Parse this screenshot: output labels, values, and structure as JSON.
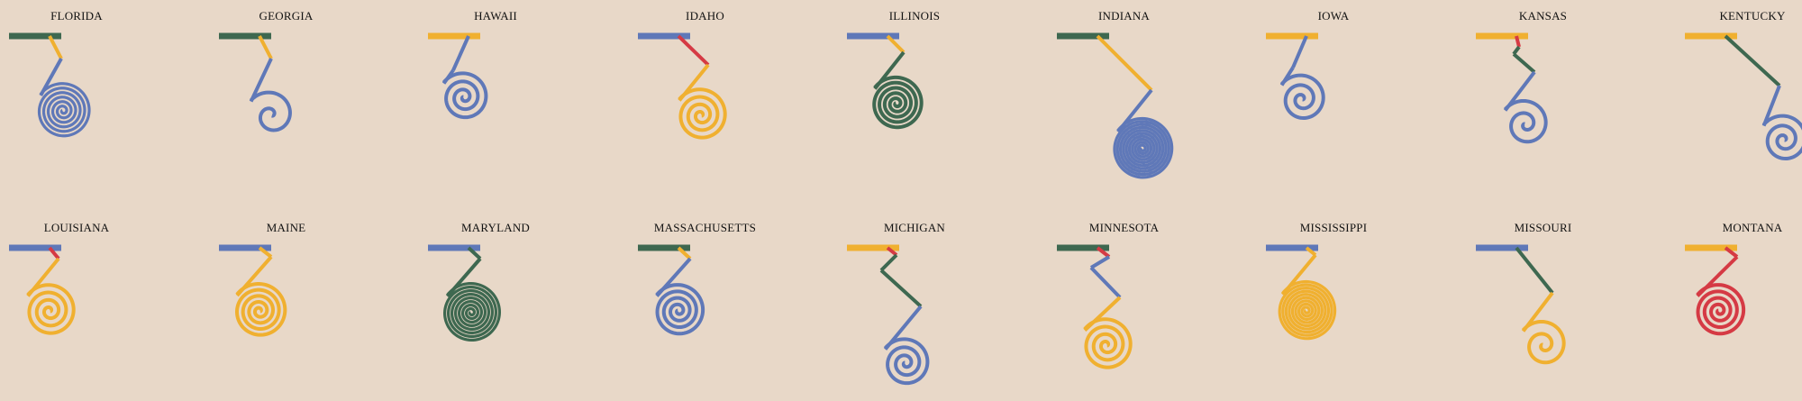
{
  "colors": {
    "background": "#e8d8c8",
    "blue": "#5f78b8",
    "green": "#3e6850",
    "yellow": "#f0b030",
    "red": "#d53a44"
  },
  "chart_data": {
    "type": "spiral-glyph small multiples",
    "panels": [
      {
        "state": "FLORIDA",
        "colors": [
          "green",
          "yellow",
          "blue"
        ],
        "coil_turns": 6,
        "coil_radius": 31
      },
      {
        "state": "GEORGIA",
        "colors": [
          "green",
          "yellow",
          "blue"
        ],
        "coil_turns": 1.5,
        "coil_radius": 28
      },
      {
        "state": "HAWAII",
        "colors": [
          "yellow",
          "blue",
          "blue"
        ],
        "coil_turns": 3,
        "coil_radius": 28
      },
      {
        "state": "IDAHO",
        "colors": [
          "blue",
          "red",
          "yellow"
        ],
        "coil_turns": 3.5,
        "coil_radius": 30
      },
      {
        "state": "ILLINOIS",
        "colors": [
          "blue",
          "yellow",
          "green"
        ],
        "coil_turns": 5,
        "coil_radius": 30
      },
      {
        "state": "INDIANA",
        "colors": [
          "green",
          "yellow",
          "blue"
        ],
        "coil_turns": 10,
        "coil_radius": 34
      },
      {
        "state": "IOWA",
        "colors": [
          "yellow",
          "blue",
          "blue"
        ],
        "coil_turns": 2.5,
        "coil_radius": 28
      },
      {
        "state": "KANSAS",
        "colors": [
          "yellow",
          "red",
          "green",
          "blue"
        ],
        "coil_turns": 2,
        "coil_radius": 28
      },
      {
        "state": "KENTUCKY",
        "colors": [
          "yellow",
          "green",
          "blue"
        ],
        "coil_turns": 2.5,
        "coil_radius": 28
      },
      {
        "state": "LOUISIANA",
        "colors": [
          "blue",
          "red",
          "yellow"
        ],
        "coil_turns": 3.5,
        "coil_radius": 30
      },
      {
        "state": "MAINE",
        "colors": [
          "blue",
          "yellow",
          "yellow"
        ],
        "coil_turns": 4.5,
        "coil_radius": 31
      },
      {
        "state": "MARYLAND",
        "colors": [
          "blue",
          "green",
          "green"
        ],
        "coil_turns": 8,
        "coil_radius": 33
      },
      {
        "state": "MASSACHUSETTS",
        "colors": [
          "green",
          "yellow",
          "blue"
        ],
        "coil_turns": 4,
        "coil_radius": 30
      },
      {
        "state": "MICHIGAN",
        "colors": [
          "yellow",
          "red",
          "green",
          "blue"
        ],
        "coil_turns": 3,
        "coil_radius": 28
      },
      {
        "state": "MINNESOTA",
        "colors": [
          "green",
          "red",
          "blue",
          "yellow"
        ],
        "coil_turns": 3.5,
        "coil_radius": 30
      },
      {
        "state": "MISSISSIPPI",
        "colors": [
          "blue",
          "yellow",
          "yellow"
        ],
        "coil_turns": 9,
        "coil_radius": 33
      },
      {
        "state": "MISSOURI",
        "colors": [
          "blue",
          "green",
          "yellow"
        ],
        "coil_turns": 2,
        "coil_radius": 28
      },
      {
        "state": "MONTANA",
        "colors": [
          "yellow",
          "red",
          "red"
        ],
        "coil_turns": 4,
        "coil_radius": 30
      }
    ]
  }
}
